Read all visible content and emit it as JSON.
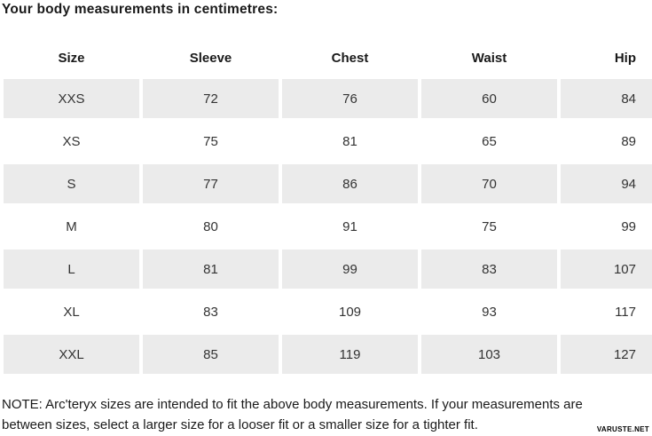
{
  "page": {
    "title": "Your body measurements in centimetres:",
    "note_lines": [
      "NOTE: Arc'teryx sizes are intended to fit the above body measurements. If your measurements are",
      "between sizes, select a larger size for a looser fit or a smaller size for a tighter fit."
    ],
    "watermark": "VARUSTE.NET"
  },
  "colors": {
    "stripe": "#ebebeb",
    "text": "#1a1a1a"
  },
  "chart_data": {
    "type": "table",
    "title": "Your body measurements in centimetres:",
    "columns": [
      "Size",
      "Sleeve",
      "Chest",
      "Waist",
      "Hip"
    ],
    "rows": [
      [
        "XXS",
        72,
        76,
        60,
        84
      ],
      [
        "XS",
        75,
        81,
        65,
        89
      ],
      [
        "S",
        77,
        86,
        70,
        94
      ],
      [
        "M",
        80,
        91,
        75,
        99
      ],
      [
        "L",
        81,
        99,
        83,
        107
      ],
      [
        "XL",
        83,
        109,
        93,
        117
      ],
      [
        "XXL",
        85,
        119,
        103,
        127
      ]
    ],
    "units": "cm",
    "layout": {
      "striped_rows": [
        0,
        2,
        4,
        6
      ],
      "hip_column_align": "right",
      "other_columns_align": "center"
    }
  }
}
